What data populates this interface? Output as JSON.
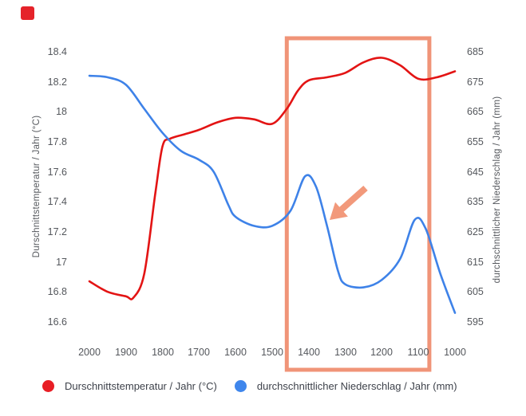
{
  "window": {
    "background": "#ffffff"
  },
  "corner_badge": {
    "color": "#e5232a"
  },
  "chart_data": {
    "type": "line",
    "title": "",
    "grid": "off",
    "legend_position": "bottom",
    "x_axis": {
      "ticks": [
        "2000",
        "1900",
        "1800",
        "1700",
        "1600",
        "1500",
        "1400",
        "1300",
        "1200",
        "1100",
        "1000"
      ],
      "direction": "reversed (years decrease to the right)"
    },
    "y_left": {
      "label": "Durschnittstemperatur / Jahr (°C)",
      "ticks": [
        "18.4",
        "18.2",
        "18",
        "17.8",
        "17.6",
        "17.4",
        "17.2",
        "17",
        "16.8",
        "16.6"
      ],
      "range": [
        16.5,
        18.5
      ]
    },
    "y_right": {
      "label": "durchschnittlicher Niederschlag / Jahr (mm)",
      "ticks": [
        "685",
        "675",
        "665",
        "655",
        "645",
        "635",
        "625",
        "615",
        "605",
        "595"
      ],
      "range": [
        590,
        690
      ]
    },
    "series": [
      {
        "name": "Durschnittstemperatur / Jahr (°C)",
        "axis": "left",
        "color": "#e31414",
        "points": [
          [
            2000,
            16.87
          ],
          [
            1950,
            16.8
          ],
          [
            1900,
            16.77
          ],
          [
            1880,
            16.76
          ],
          [
            1850,
            16.92
          ],
          [
            1820,
            17.45
          ],
          [
            1800,
            17.77
          ],
          [
            1780,
            17.82
          ],
          [
            1740,
            17.85
          ],
          [
            1700,
            17.88
          ],
          [
            1650,
            17.93
          ],
          [
            1600,
            17.96
          ],
          [
            1550,
            17.95
          ],
          [
            1500,
            17.92
          ],
          [
            1460,
            18.02
          ],
          [
            1430,
            18.14
          ],
          [
            1400,
            18.21
          ],
          [
            1350,
            18.23
          ],
          [
            1300,
            18.26
          ],
          [
            1250,
            18.33
          ],
          [
            1200,
            18.36
          ],
          [
            1150,
            18.31
          ],
          [
            1100,
            18.22
          ],
          [
            1050,
            18.23
          ],
          [
            1000,
            18.27
          ]
        ]
      },
      {
        "name": "durchschnittlicher Niederschlag / Jahr (mm)",
        "axis": "right",
        "color": "#3e82e8",
        "points": [
          [
            2000,
            677
          ],
          [
            1950,
            676.5
          ],
          [
            1900,
            674
          ],
          [
            1850,
            666
          ],
          [
            1800,
            658
          ],
          [
            1750,
            652
          ],
          [
            1700,
            649
          ],
          [
            1660,
            645
          ],
          [
            1620,
            634
          ],
          [
            1600,
            630
          ],
          [
            1550,
            627
          ],
          [
            1500,
            627
          ],
          [
            1450,
            632
          ],
          [
            1410,
            643.5
          ],
          [
            1380,
            640
          ],
          [
            1350,
            627
          ],
          [
            1320,
            612
          ],
          [
            1300,
            607.5
          ],
          [
            1250,
            606.5
          ],
          [
            1200,
            609
          ],
          [
            1150,
            616
          ],
          [
            1110,
            629
          ],
          [
            1080,
            626
          ],
          [
            1040,
            611
          ],
          [
            1000,
            598
          ]
        ]
      }
    ],
    "annotations": {
      "highlight_box": {
        "x_from_year": 1460,
        "x_to_year": 1070,
        "color": "#f09478",
        "note": "orange rectangle framing the 1400-1100 period incl. x labels"
      },
      "arrow": {
        "color": "#f2997b",
        "points_at": "steep decline of precipitation around year 1350",
        "tail": [
          458,
          236
        ],
        "tip": [
          413,
          276
        ]
      }
    }
  },
  "legend": {
    "items": [
      {
        "label": "Durschnittstemperatur / Jahr (°C)",
        "color": "#e81e25"
      },
      {
        "label": "durchschnittlicher Niederschlag / Jahr (mm)",
        "color": "#3f86ec"
      }
    ]
  }
}
